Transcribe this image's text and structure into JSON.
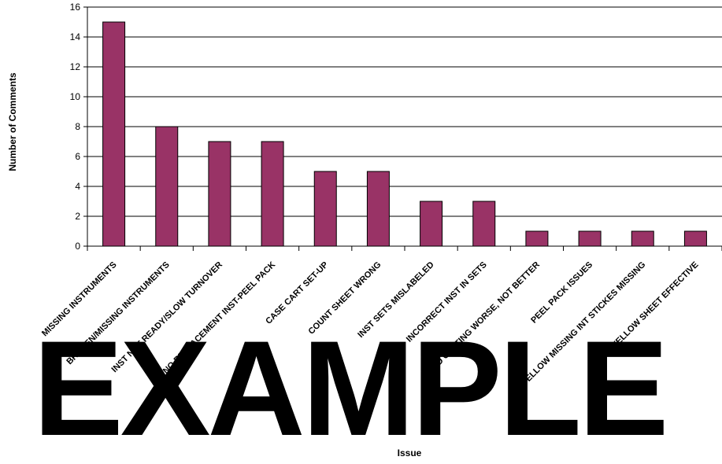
{
  "chart_data": {
    "type": "bar",
    "categories": [
      "MISSING INSTRUMENTS",
      "BROKEN/MISSING INSTRUMENTS",
      "INST NOT READY/SLOW TURNOVER",
      "NO REPLACEMENT INST-PEEL PACK",
      "CASE CART SET-UP",
      "COUNT SHEET WRONG",
      "INST SETS MISLABELED",
      "INCORRECT INST IN SETS",
      "SPD GETTING WORSE, NOT BETTER",
      "PEEL PACK ISSUES",
      "YELLOW MISSING INT STICKES MISSING",
      "DOUBT YELLOW SHEET EFFECTIVE"
    ],
    "values": [
      15,
      8,
      7,
      7,
      5,
      5,
      3,
      3,
      1,
      1,
      1,
      1
    ],
    "xlabel": "Issue",
    "ylabel": "Number of Comments",
    "ylim": [
      0,
      16
    ],
    "yticks": [
      0,
      2,
      4,
      6,
      8,
      10,
      12,
      14,
      16
    ],
    "grid": true,
    "legend": "none",
    "bar_color": "#993366"
  },
  "watermark": "EXAMPLE"
}
